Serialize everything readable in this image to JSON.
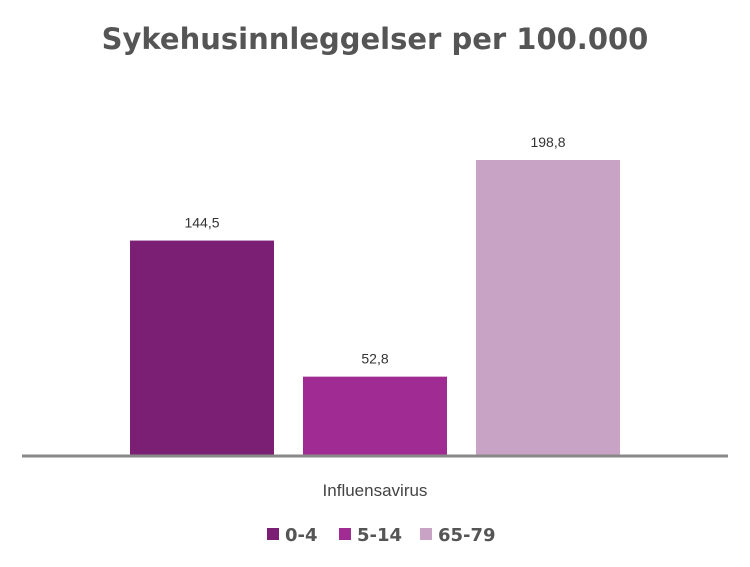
{
  "chart_data": {
    "type": "bar",
    "title": "Sykehusinnleggelser per 100.000",
    "categories": [
      "Influensavirus"
    ],
    "series": [
      {
        "name": "0-4",
        "values": [
          144.5
        ],
        "label": "144,5",
        "color": "#7B1F75"
      },
      {
        "name": "5-14",
        "values": [
          52.8
        ],
        "label": "52,8",
        "color": "#A02B93"
      },
      {
        "name": "65-79",
        "values": [
          198.8
        ],
        "label": "198,8",
        "color": "#C9A3C6"
      }
    ],
    "ylim": [
      0,
      198.8
    ],
    "grid": false,
    "legend": "bottom"
  }
}
